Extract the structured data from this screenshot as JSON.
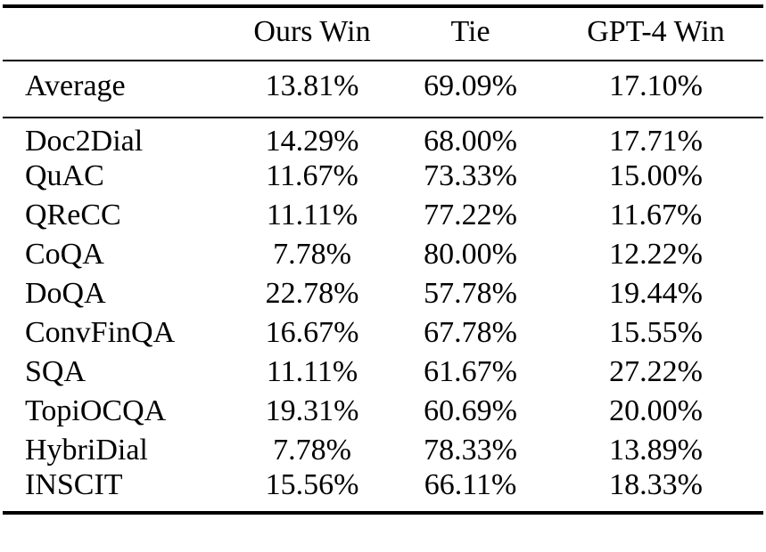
{
  "table": {
    "columns": [
      "",
      "Ours Win",
      "Tie",
      "GPT-4 Win"
    ],
    "average": {
      "label": "Average",
      "values": [
        "13.81%",
        "69.09%",
        "17.10%"
      ]
    },
    "rows": [
      {
        "label": "Doc2Dial",
        "values": [
          "14.29%",
          "68.00%",
          "17.71%"
        ]
      },
      {
        "label": "QuAC",
        "values": [
          "11.67%",
          "73.33%",
          "15.00%"
        ]
      },
      {
        "label": "QReCC",
        "values": [
          "11.11%",
          "77.22%",
          "11.67%"
        ]
      },
      {
        "label": "CoQA",
        "values": [
          "7.78%",
          "80.00%",
          "12.22%"
        ]
      },
      {
        "label": "DoQA",
        "values": [
          "22.78%",
          "57.78%",
          "19.44%"
        ]
      },
      {
        "label": "ConvFinQA",
        "values": [
          "16.67%",
          "67.78%",
          "15.55%"
        ]
      },
      {
        "label": "SQA",
        "values": [
          "11.11%",
          "61.67%",
          "27.22%"
        ]
      },
      {
        "label": "TopiOCQA",
        "values": [
          "19.31%",
          "60.69%",
          "20.00%"
        ]
      },
      {
        "label": "HybriDial",
        "values": [
          "7.78%",
          "78.33%",
          "13.89%"
        ]
      },
      {
        "label": "INSCIT",
        "values": [
          "15.56%",
          "66.11%",
          "18.33%"
        ]
      }
    ]
  },
  "colors": {
    "text": "#000000",
    "background": "#ffffff",
    "rule": "#000000"
  }
}
